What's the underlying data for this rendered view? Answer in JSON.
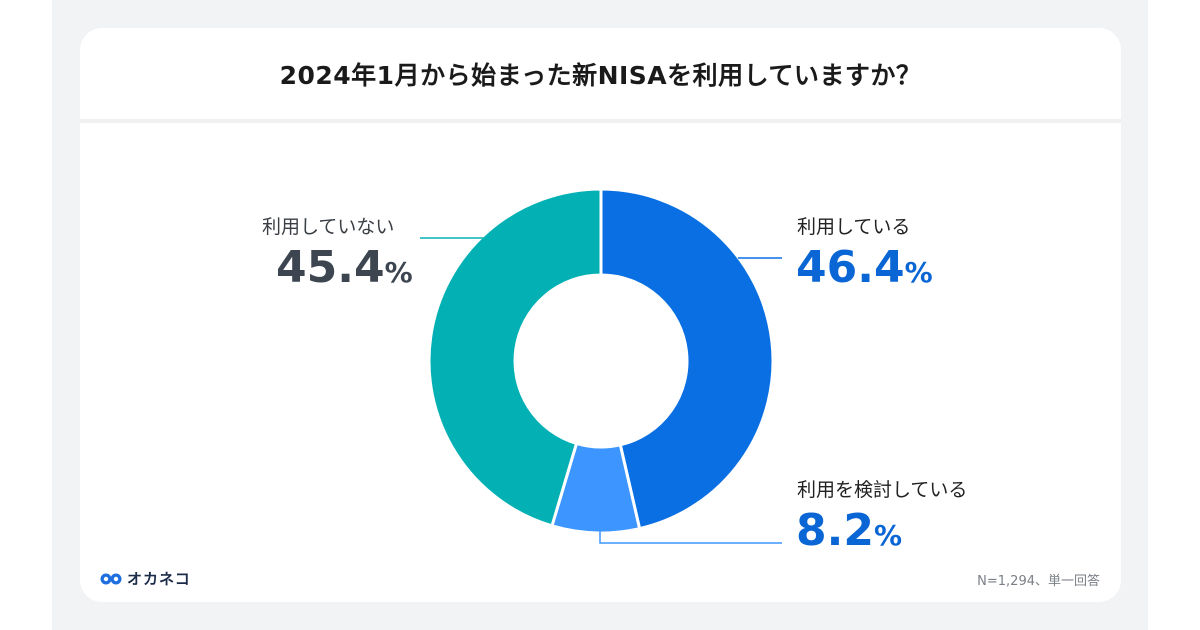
{
  "title": "2024年1月から始まった新NISAを利用していますか？",
  "chart_data": {
    "type": "pie",
    "donut": true,
    "categories": [
      "利用している",
      "利用を検討している",
      "利用していない"
    ],
    "values": [
      46.4,
      8.2,
      45.4
    ],
    "value_labels": [
      "46.4",
      "8.2",
      "45.4"
    ],
    "unit": "%",
    "colors": [
      "#0a6fe3",
      "#3d95ff",
      "#03b1b4"
    ],
    "label_colors": [
      "#0a66d4",
      "#0a66d4",
      "#3d4650"
    ],
    "start": "12 o'clock, clockwise"
  },
  "brand": {
    "icon": "owl-eyes-logo-icon",
    "name": "オカネコ"
  },
  "footnote": "N=1,294、単一回答"
}
